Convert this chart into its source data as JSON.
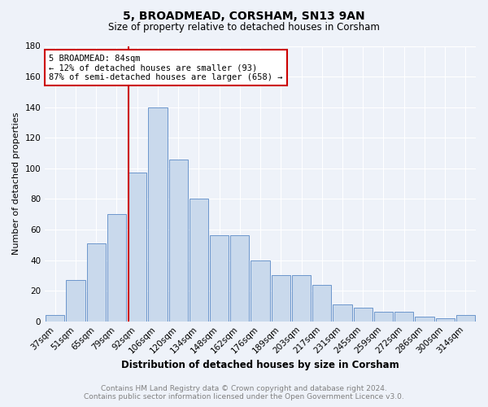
{
  "title": "5, BROADMEAD, CORSHAM, SN13 9AN",
  "subtitle": "Size of property relative to detached houses in Corsham",
  "xlabel": "Distribution of detached houses by size in Corsham",
  "ylabel": "Number of detached properties",
  "categories": [
    "37sqm",
    "51sqm",
    "65sqm",
    "79sqm",
    "92sqm",
    "106sqm",
    "120sqm",
    "134sqm",
    "148sqm",
    "162sqm",
    "176sqm",
    "189sqm",
    "203sqm",
    "217sqm",
    "231sqm",
    "245sqm",
    "259sqm",
    "272sqm",
    "286sqm",
    "300sqm",
    "314sqm"
  ],
  "values": [
    4,
    27,
    51,
    70,
    97,
    140,
    106,
    80,
    56,
    56,
    40,
    30,
    30,
    24,
    11,
    9,
    6,
    6,
    3,
    2,
    4
  ],
  "bar_color": "#c9d9ec",
  "bar_edge_color": "#5a8ac6",
  "vline_color": "#cc0000",
  "vline_pos": 3.57,
  "annotation_title": "5 BROADMEAD: 84sqm",
  "annotation_line1": "← 12% of detached houses are smaller (93)",
  "annotation_line2": "87% of semi-detached houses are larger (658) →",
  "annotation_box_color": "#cc0000",
  "ylim": [
    0,
    180
  ],
  "yticks": [
    0,
    20,
    40,
    60,
    80,
    100,
    120,
    140,
    160,
    180
  ],
  "footer_line1": "Contains HM Land Registry data © Crown copyright and database right 2024.",
  "footer_line2": "Contains public sector information licensed under the Open Government Licence v3.0.",
  "background_color": "#eef2f9",
  "grid_color": "#ffffff",
  "title_fontsize": 10,
  "subtitle_fontsize": 8.5,
  "tick_fontsize": 7.5,
  "ylabel_fontsize": 8,
  "xlabel_fontsize": 8.5,
  "annotation_fontsize": 7.5,
  "footer_fontsize": 6.5
}
